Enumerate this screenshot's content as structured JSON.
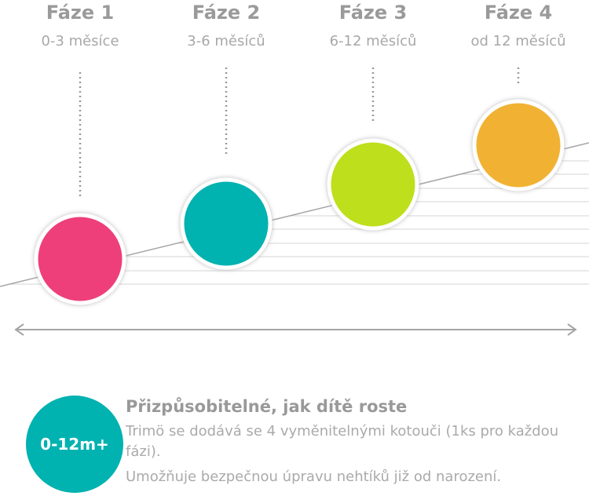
{
  "phases": [
    {
      "title": "Fáze 1",
      "subtitle": "0-3 měsíce"
    },
    {
      "title": "Fáze 2",
      "subtitle": "3-6 měsíců"
    },
    {
      "title": "Fáze 3",
      "subtitle": "6-12 měsíců"
    },
    {
      "title": "Fáze 4",
      "subtitle": "od 12 měsíců"
    }
  ],
  "badge": "0-12m+",
  "heading": "Přizpůsobitelné, jak dítě roste",
  "paragraphs": [
    "Trimö se dodává se 4 vyměnitelnými kotouči (1ks pro každou fázi).",
    "Umožňuje bezpečnou úpravu nehtíků již od narození."
  ]
}
